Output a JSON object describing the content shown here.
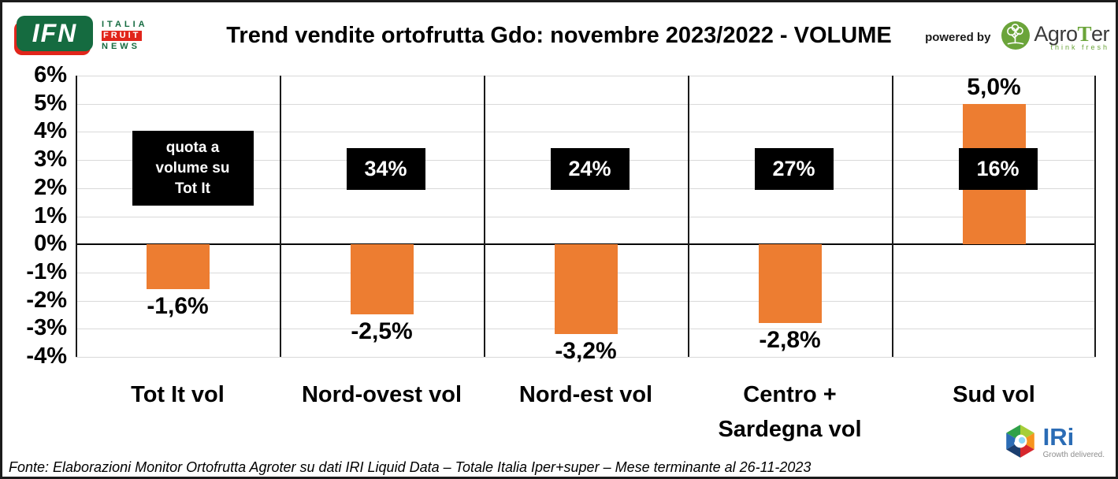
{
  "header": {
    "title": "Trend vendite ortofrutta Gdo: novembre 2023/2022 - VOLUME",
    "powered_by": "powered by",
    "ifn_logo": {
      "acronym": "IFN",
      "line1": "ITALIA",
      "line2": "FRUIT",
      "line3": "NEWS"
    },
    "agroter": {
      "name_prefix": "Agro",
      "name_t": "T",
      "name_suffix": "er",
      "tagline": "think fresh"
    }
  },
  "chart_data": {
    "type": "bar",
    "title": "Trend vendite ortofrutta Gdo: novembre 2023/2022 - VOLUME",
    "categories": [
      "Tot It  vol",
      "Nord-ovest vol",
      "Nord-est vol",
      "Centro +\nSardegna vol",
      "Sud vol"
    ],
    "values": [
      -1.6,
      -2.5,
      -3.2,
      -2.8,
      5.0
    ],
    "value_labels": [
      "-1,6%",
      "-2,5%",
      "-3,2%",
      "-2,8%",
      "5,0%"
    ],
    "quota_annotations": [
      "quota a volume su Tot It",
      "34%",
      "24%",
      "27%",
      "16%"
    ],
    "y_ticks": [
      "6%",
      "5%",
      "4%",
      "3%",
      "2%",
      "1%",
      "0%",
      "-1%",
      "-2%",
      "-3%",
      "-4%"
    ],
    "ylim": [
      -4,
      6
    ],
    "grid": true,
    "legend": "none",
    "bar_color": "#ED7D31",
    "annotation_bg": "#000000",
    "annotation_text_color": "#FFFFFF"
  },
  "footer": {
    "source": "Fonte: Elaborazioni Monitor Ortofrutta Agroter su dati IRI Liquid Data – Totale Italia Iper+super – Mese terminante al 26-11-2023",
    "iri": {
      "name": "IRi",
      "tagline": "Growth delivered."
    }
  }
}
